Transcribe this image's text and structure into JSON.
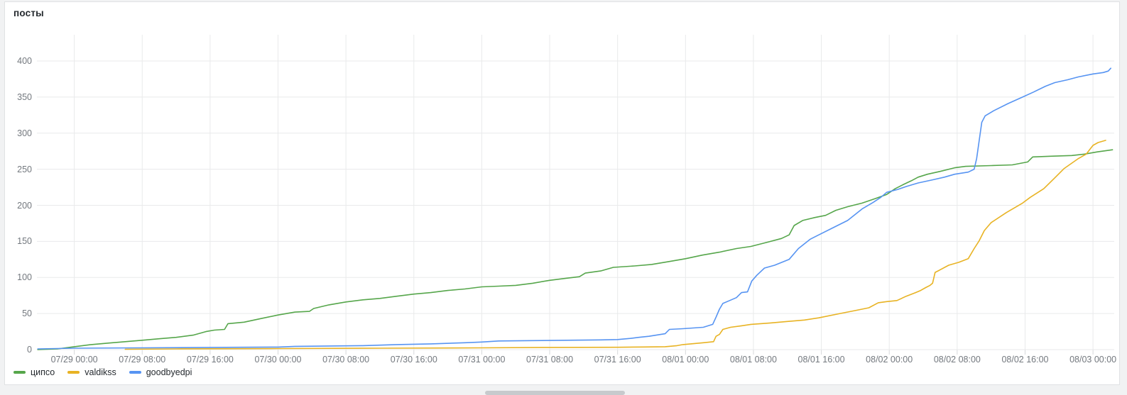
{
  "panel": {
    "title": "посты"
  },
  "colors": {
    "green": "#56a64b",
    "yellow": "#e8b324",
    "blue": "#5794f2",
    "grid": "#e9eaeb",
    "tick": "#d7d9db",
    "axis_text": "#73787e",
    "panel_border": "#e0e2e4",
    "page_bg": "#f1f2f3",
    "scrollbar_thumb": "#c7cacd"
  },
  "legend": {
    "items": [
      {
        "label": "ципсо",
        "color_key": "green"
      },
      {
        "label": "valdikss",
        "color_key": "yellow"
      },
      {
        "label": "goodbyedpi",
        "color_key": "blue"
      }
    ]
  },
  "chart_data": {
    "type": "line",
    "title": "посты",
    "xlabel": "",
    "ylabel": "",
    "grid": true,
    "legend_position": "bottom-left",
    "x_axis": {
      "unit": "time",
      "tick_labels": [
        "07/29 00:00",
        "07/29 08:00",
        "07/29 16:00",
        "07/30 00:00",
        "07/30 08:00",
        "07/30 16:00",
        "07/31 00:00",
        "07/31 08:00",
        "07/31 16:00",
        "08/01 00:00",
        "08/01 08:00",
        "08/01 16:00",
        "08/02 00:00",
        "08/02 08:00",
        "08/02 16:00",
        "08/03 00:00"
      ],
      "tick_hours": [
        0,
        8,
        16,
        24,
        32,
        40,
        48,
        56,
        64,
        72,
        80,
        88,
        96,
        104,
        112,
        120
      ],
      "range_hours": [
        -4.4,
        122.5
      ]
    },
    "y_axis": {
      "tick_labels": [
        "0",
        "50",
        "100",
        "150",
        "200",
        "250",
        "300",
        "350",
        "400"
      ],
      "tick_values": [
        0,
        50,
        100,
        150,
        200,
        250,
        300,
        350,
        400
      ],
      "range": [
        0,
        435
      ]
    },
    "series": [
      {
        "name": "ципсо",
        "color_key": "green",
        "points": [
          [
            -4.3,
            0
          ],
          [
            -2,
            1
          ],
          [
            0,
            4
          ],
          [
            2,
            7
          ],
          [
            4,
            9
          ],
          [
            6,
            11
          ],
          [
            8,
            13
          ],
          [
            10,
            15
          ],
          [
            12,
            17
          ],
          [
            14,
            20
          ],
          [
            15.5,
            25
          ],
          [
            16.5,
            27
          ],
          [
            17.7,
            28
          ],
          [
            18.1,
            36
          ],
          [
            20,
            38
          ],
          [
            22,
            43
          ],
          [
            24,
            48
          ],
          [
            26,
            52
          ],
          [
            27.7,
            53
          ],
          [
            28.2,
            57
          ],
          [
            30,
            62
          ],
          [
            32,
            66
          ],
          [
            34,
            69
          ],
          [
            36,
            71
          ],
          [
            38,
            74
          ],
          [
            40,
            77
          ],
          [
            42,
            79
          ],
          [
            44,
            82
          ],
          [
            46,
            84
          ],
          [
            48,
            87
          ],
          [
            50,
            88
          ],
          [
            52,
            89
          ],
          [
            54,
            92
          ],
          [
            56,
            96
          ],
          [
            58,
            99
          ],
          [
            59.5,
            101
          ],
          [
            60.2,
            106
          ],
          [
            62,
            109
          ],
          [
            63.5,
            114
          ],
          [
            66,
            116
          ],
          [
            68,
            118
          ],
          [
            70,
            122
          ],
          [
            72,
            126
          ],
          [
            74,
            131
          ],
          [
            76,
            135
          ],
          [
            78,
            140
          ],
          [
            79.7,
            143
          ],
          [
            81.7,
            149
          ],
          [
            83.3,
            154
          ],
          [
            84.2,
            159
          ],
          [
            84.8,
            172
          ],
          [
            85.8,
            179
          ],
          [
            87.2,
            183
          ],
          [
            88.5,
            186
          ],
          [
            89.7,
            193
          ],
          [
            91.1,
            198
          ],
          [
            92.8,
            203
          ],
          [
            94.3,
            209
          ],
          [
            95.7,
            215
          ],
          [
            96.7,
            223
          ],
          [
            97.7,
            229
          ],
          [
            98.6,
            234
          ],
          [
            99.4,
            239
          ],
          [
            100.5,
            243
          ],
          [
            102,
            247
          ],
          [
            103.7,
            252
          ],
          [
            105,
            254
          ],
          [
            108,
            255
          ],
          [
            110.5,
            256
          ],
          [
            112.3,
            260
          ],
          [
            112.9,
            267
          ],
          [
            115,
            268
          ],
          [
            117.5,
            269
          ],
          [
            119,
            271
          ],
          [
            120.5,
            274
          ],
          [
            122.3,
            277
          ]
        ]
      },
      {
        "name": "valdikss",
        "color_key": "yellow",
        "points": [
          [
            6,
            0.5
          ],
          [
            12,
            1
          ],
          [
            24,
            1.5
          ],
          [
            36,
            2
          ],
          [
            48,
            2.5
          ],
          [
            56,
            3
          ],
          [
            64,
            3.2
          ],
          [
            67,
            3.6
          ],
          [
            69.6,
            4
          ],
          [
            71,
            5.5
          ],
          [
            71.7,
            7
          ],
          [
            74.1,
            9.5
          ],
          [
            75.3,
            11
          ],
          [
            75.6,
            18.5
          ],
          [
            76,
            21
          ],
          [
            76.4,
            28
          ],
          [
            77.3,
            31
          ],
          [
            78.6,
            33
          ],
          [
            79.7,
            35
          ],
          [
            82,
            37
          ],
          [
            84,
            39
          ],
          [
            86,
            41
          ],
          [
            87.7,
            44
          ],
          [
            90.2,
            50
          ],
          [
            91.9,
            54
          ],
          [
            93.6,
            58
          ],
          [
            94.7,
            65
          ],
          [
            95.7,
            66.5
          ],
          [
            96.9,
            68
          ],
          [
            98,
            74
          ],
          [
            99.1,
            79
          ],
          [
            99.7,
            82
          ],
          [
            100.3,
            86
          ],
          [
            100.8,
            89
          ],
          [
            101.1,
            92
          ],
          [
            101.4,
            107
          ],
          [
            101.9,
            110
          ],
          [
            103,
            117
          ],
          [
            104.2,
            121
          ],
          [
            105.3,
            126
          ],
          [
            106,
            140
          ],
          [
            106.6,
            151
          ],
          [
            107.2,
            165
          ],
          [
            108,
            176
          ],
          [
            109.8,
            190
          ],
          [
            111.7,
            203
          ],
          [
            112.6,
            211
          ],
          [
            114.2,
            223
          ],
          [
            115.5,
            238
          ],
          [
            116.6,
            251
          ],
          [
            118.3,
            265
          ],
          [
            119.2,
            271
          ],
          [
            120,
            283
          ],
          [
            120.6,
            287
          ],
          [
            121.5,
            290
          ]
        ]
      },
      {
        "name": "goodbyedpi",
        "color_key": "blue",
        "points": [
          [
            -4.3,
            1
          ],
          [
            0,
            2
          ],
          [
            8,
            2.5
          ],
          [
            16,
            3
          ],
          [
            24,
            3.5
          ],
          [
            26,
            4.5
          ],
          [
            30,
            5
          ],
          [
            34,
            5.5
          ],
          [
            38,
            7
          ],
          [
            42,
            8
          ],
          [
            46,
            9.5
          ],
          [
            48,
            10.5
          ],
          [
            50,
            12
          ],
          [
            54,
            12.5
          ],
          [
            58,
            13
          ],
          [
            62,
            13.5
          ],
          [
            64,
            14
          ],
          [
            65.5,
            15.5
          ],
          [
            66.5,
            17
          ],
          [
            67.7,
            18.5
          ],
          [
            69.6,
            22
          ],
          [
            70.1,
            28
          ],
          [
            71.7,
            29
          ],
          [
            74.1,
            31
          ],
          [
            75.2,
            35
          ],
          [
            75.6,
            45
          ],
          [
            76,
            56
          ],
          [
            76.4,
            64
          ],
          [
            77,
            67
          ],
          [
            78,
            72
          ],
          [
            78.6,
            79
          ],
          [
            79.3,
            80
          ],
          [
            79.8,
            95
          ],
          [
            80.4,
            103
          ],
          [
            81.3,
            113
          ],
          [
            82.5,
            117
          ],
          [
            84.2,
            125
          ],
          [
            85.3,
            140
          ],
          [
            86.7,
            153
          ],
          [
            87.7,
            159
          ],
          [
            89.4,
            169
          ],
          [
            91.1,
            179
          ],
          [
            92.8,
            195
          ],
          [
            94.1,
            204
          ],
          [
            95,
            211
          ],
          [
            95.7,
            218
          ],
          [
            97,
            222
          ],
          [
            98,
            226
          ],
          [
            99.4,
            231
          ],
          [
            101,
            235
          ],
          [
            102.5,
            239
          ],
          [
            103.7,
            243
          ],
          [
            105.3,
            246
          ],
          [
            106,
            250
          ],
          [
            106.3,
            265
          ],
          [
            106.6,
            290
          ],
          [
            106.9,
            315
          ],
          [
            107.3,
            324
          ],
          [
            108.3,
            331
          ],
          [
            110,
            341
          ],
          [
            111.7,
            350
          ],
          [
            113,
            357
          ],
          [
            114.4,
            365
          ],
          [
            115.5,
            370
          ],
          [
            117,
            374
          ],
          [
            118.3,
            378
          ],
          [
            120,
            382
          ],
          [
            121.2,
            384
          ],
          [
            121.8,
            386
          ],
          [
            122.1,
            390
          ]
        ]
      }
    ]
  }
}
